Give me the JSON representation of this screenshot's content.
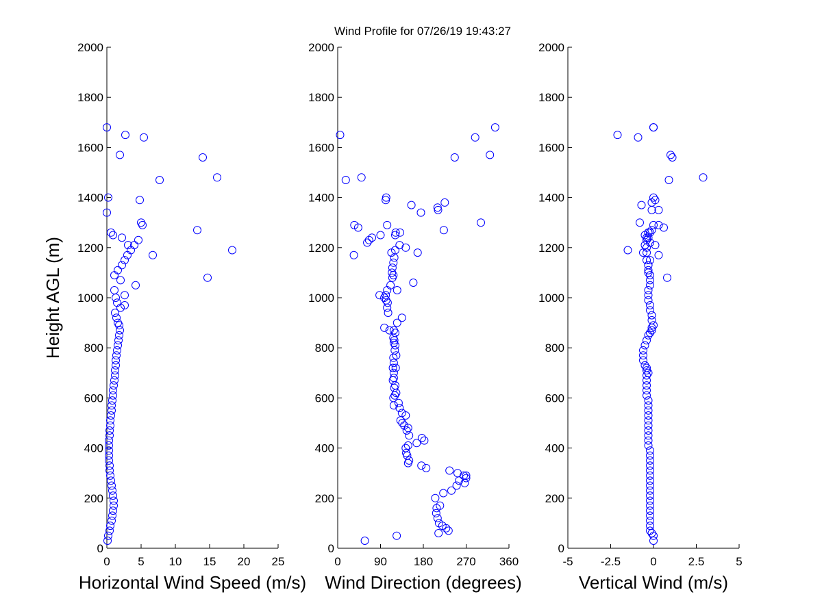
{
  "title": "Wind Profile for  07/26/19 19:43:27",
  "marker_color": "#0000ff",
  "chart_data": [
    {
      "type": "scatter",
      "xlabel": "Horizontal Wind Speed (m/s)",
      "ylabel": "Height AGL (m)",
      "xlim": [
        0,
        25
      ],
      "ylim": [
        0,
        2000
      ],
      "xticks": [
        0,
        5,
        10,
        15,
        20,
        25
      ],
      "xticklabels": [
        "0",
        "5",
        "10",
        "15",
        "20",
        "25"
      ],
      "yticks": [
        0,
        200,
        400,
        600,
        800,
        1000,
        1200,
        1400,
        1600,
        1800,
        2000
      ],
      "yticklabels": [
        "0",
        "200",
        "400",
        "600",
        "800",
        "1000",
        "1200",
        "1400",
        "1600",
        "1800",
        "2000"
      ],
      "grid": false,
      "marker": "open-circle",
      "x": [
        0.1,
        0.2,
        0.4,
        0.5,
        0.7,
        0.8,
        0.9,
        1.0,
        1.0,
        0.9,
        0.8,
        0.7,
        0.6,
        0.5,
        0.4,
        0.4,
        0.3,
        0.3,
        0.3,
        0.3,
        0.3,
        0.4,
        0.4,
        0.5,
        0.5,
        0.6,
        0.7,
        0.7,
        0.8,
        0.9,
        0.9,
        1.0,
        1.1,
        1.2,
        1.2,
        1.3,
        1.3,
        1.4,
        1.5,
        1.6,
        1.7,
        1.8,
        1.9,
        1.8,
        1.6,
        1.4,
        1.2,
        2.0,
        1.5,
        1.3,
        2.6,
        2.6,
        1.1,
        4.2,
        2.0,
        1.1,
        1.6,
        2.2,
        2.6,
        3.0,
        3.5,
        4.0,
        3.1,
        2.2,
        4.6,
        0.9,
        0.6,
        5.2,
        5.0,
        4.8,
        0.2,
        0.0,
        1.9,
        2.7,
        5.4,
        0.0,
        7.7,
        6.7,
        13.2,
        14.0,
        16.1,
        18.3,
        14.7
      ],
      "y": [
        30,
        50,
        70,
        90,
        110,
        130,
        150,
        170,
        190,
        210,
        230,
        250,
        270,
        290,
        310,
        330,
        350,
        370,
        390,
        410,
        430,
        450,
        470,
        490,
        510,
        530,
        550,
        570,
        590,
        610,
        630,
        650,
        670,
        690,
        710,
        730,
        750,
        770,
        790,
        810,
        830,
        850,
        870,
        890,
        900,
        920,
        940,
        960,
        980,
        1000,
        1010,
        970,
        1030,
        1050,
        1070,
        1090,
        1110,
        1130,
        1150,
        1170,
        1190,
        1210,
        1210,
        1240,
        1230,
        1250,
        1260,
        1290,
        1300,
        1390,
        1400,
        1340,
        1570,
        1650,
        1640,
        1680,
        1470,
        1170,
        1270,
        1560,
        1480,
        1190,
        1080
      ]
    },
    {
      "type": "scatter",
      "xlabel": "Wind Direction (degrees)",
      "ylabel": "",
      "xlim": [
        0,
        360
      ],
      "ylim": [
        0,
        2000
      ],
      "xticks": [
        0,
        90,
        180,
        270,
        360
      ],
      "xticklabels": [
        "0",
        "90",
        "180",
        "270",
        "360"
      ],
      "yticks": [
        0,
        200,
        400,
        600,
        800,
        1000,
        1200,
        1400,
        1600,
        1800,
        2000
      ],
      "yticklabels": [
        "0",
        "200",
        "400",
        "600",
        "800",
        "1000",
        "1200",
        "1400",
        "1600",
        "1800",
        "2000"
      ],
      "grid": false,
      "marker": "open-circle",
      "x": [
        57,
        124,
        212,
        233,
        228,
        220,
        213,
        210,
        207,
        208,
        215,
        205,
        222,
        239,
        250,
        252,
        265,
        270,
        267,
        235,
        255,
        270,
        186,
        176,
        148,
        150,
        146,
        144,
        143,
        148,
        166,
        177,
        182,
        150,
        145,
        148,
        140,
        136,
        143,
        132,
        135,
        130,
        128,
        118,
        123,
        117,
        120,
        119,
        121,
        116,
        118,
        118,
        116,
        118,
        117,
        122,
        120,
        123,
        121,
        119,
        118,
        117,
        121,
        118,
        125,
        135,
        109,
        98,
        106,
        104,
        105,
        102,
        98,
        101,
        88,
        104,
        125,
        111,
        159,
        115,
        114,
        117,
        115,
        117,
        119,
        121,
        130,
        113,
        143,
        168,
        34,
        122,
        62,
        66,
        121,
        72,
        90,
        131,
        104,
        43,
        35,
        155,
        211,
        210,
        225,
        175,
        223,
        301,
        101,
        102,
        246,
        289,
        331,
        320,
        5,
        50,
        17
      ],
      "y": [
        30,
        50,
        60,
        70,
        80,
        90,
        100,
        120,
        140,
        160,
        170,
        200,
        220,
        230,
        250,
        300,
        290,
        280,
        260,
        310,
        270,
        290,
        320,
        330,
        340,
        350,
        370,
        380,
        400,
        410,
        420,
        440,
        430,
        450,
        470,
        480,
        490,
        500,
        530,
        510,
        540,
        560,
        580,
        570,
        620,
        600,
        610,
        640,
        650,
        670,
        680,
        700,
        720,
        740,
        760,
        720,
        790,
        770,
        810,
        830,
        820,
        840,
        860,
        870,
        900,
        920,
        870,
        880,
        940,
        960,
        980,
        990,
        1000,
        1010,
        1010,
        1030,
        1030,
        1050,
        1060,
        1080,
        1100,
        1090,
        1120,
        1140,
        1160,
        1190,
        1210,
        1180,
        1200,
        1180,
        1170,
        1260,
        1220,
        1230,
        1250,
        1240,
        1250,
        1260,
        1290,
        1280,
        1290,
        1370,
        1350,
        1360,
        1380,
        1340,
        1270,
        1300,
        1390,
        1400,
        1560,
        1640,
        1680,
        1570,
        1650,
        1480,
        1470
      ]
    },
    {
      "type": "scatter",
      "xlabel": "Vertical Wind (m/s)",
      "ylabel": "",
      "xlim": [
        -5,
        5
      ],
      "ylim": [
        0,
        2000
      ],
      "xticks": [
        -5,
        -2.5,
        0,
        2.5,
        5
      ],
      "xticklabels": [
        "-5",
        "-2.5",
        "0",
        "2.5",
        "5"
      ],
      "yticks": [
        0,
        200,
        400,
        600,
        800,
        1000,
        1200,
        1400,
        1600,
        1800,
        2000
      ],
      "yticklabels": [
        "0",
        "200",
        "400",
        "600",
        "800",
        "1000",
        "1200",
        "1400",
        "1600",
        "1800",
        "2000"
      ],
      "grid": false,
      "marker": "open-circle",
      "x": [
        0.0,
        0.0,
        -0.1,
        -0.2,
        -0.2,
        -0.2,
        -0.2,
        -0.2,
        -0.2,
        -0.2,
        -0.2,
        -0.2,
        -0.2,
        -0.2,
        -0.2,
        -0.2,
        -0.2,
        -0.2,
        -0.2,
        -0.2,
        -0.3,
        -0.3,
        -0.3,
        -0.3,
        -0.3,
        -0.3,
        -0.3,
        -0.3,
        -0.3,
        -0.3,
        -0.4,
        -0.4,
        -0.4,
        -0.4,
        -0.4,
        -0.3,
        -0.4,
        -0.4,
        -0.5,
        -0.6,
        -0.6,
        -0.6,
        -0.5,
        -0.4,
        -0.3,
        -0.2,
        -0.1,
        -0.1,
        0.0,
        -0.1,
        -0.1,
        -0.2,
        -0.2,
        -0.3,
        -0.3,
        -0.3,
        -0.2,
        -0.2,
        -0.2,
        -0.3,
        -0.3,
        -0.4,
        -0.2,
        -0.4,
        -0.4,
        0.8,
        -0.3,
        -0.2,
        -0.3,
        -0.5,
        -0.3,
        -0.5,
        -0.4,
        0.3,
        -0.3,
        -1.5,
        -0.6,
        0.1,
        -0.1,
        -0.3,
        -0.4,
        0.0,
        -0.2,
        0.6,
        0.3,
        -0.8,
        -0.1,
        0.1,
        0.3,
        -0.7,
        0.0,
        -0.1,
        0.0,
        0.9,
        2.9,
        1.0,
        1.1,
        -2.1,
        -0.9,
        0.0
      ],
      "y": [
        30,
        50,
        60,
        70,
        90,
        110,
        130,
        150,
        170,
        190,
        210,
        230,
        250,
        270,
        290,
        310,
        330,
        350,
        370,
        390,
        410,
        430,
        450,
        470,
        490,
        510,
        530,
        550,
        570,
        590,
        610,
        630,
        650,
        670,
        690,
        700,
        710,
        720,
        730,
        750,
        770,
        790,
        810,
        830,
        850,
        860,
        870,
        880,
        890,
        910,
        930,
        950,
        970,
        990,
        1010,
        1030,
        1050,
        1070,
        1090,
        1110,
        1130,
        1150,
        1150,
        1180,
        1200,
        1080,
        1100,
        1220,
        1240,
        1250,
        1260,
        1210,
        1230,
        1170,
        1130,
        1190,
        1180,
        1210,
        1270,
        1260,
        1240,
        1290,
        1260,
        1280,
        1290,
        1300,
        1350,
        1390,
        1350,
        1370,
        1400,
        1380,
        1680,
        1470,
        1480,
        1570,
        1560,
        1650,
        1640,
        1680
      ]
    }
  ]
}
